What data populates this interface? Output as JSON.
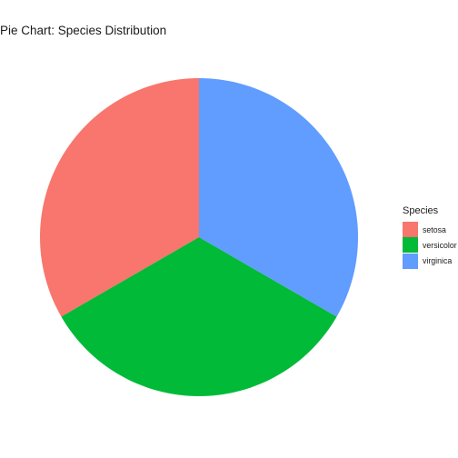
{
  "chart_data": {
    "type": "pie",
    "title": "Pie Chart: Species Distribution",
    "legend": {
      "title": "Species",
      "position": "right"
    },
    "categories": [
      "setosa",
      "versicolor",
      "virginica"
    ],
    "values": [
      50,
      50,
      50
    ],
    "colors": [
      "#F8766D",
      "#00BA38",
      "#619CFF"
    ],
    "direction": "counterclockwise from top"
  }
}
